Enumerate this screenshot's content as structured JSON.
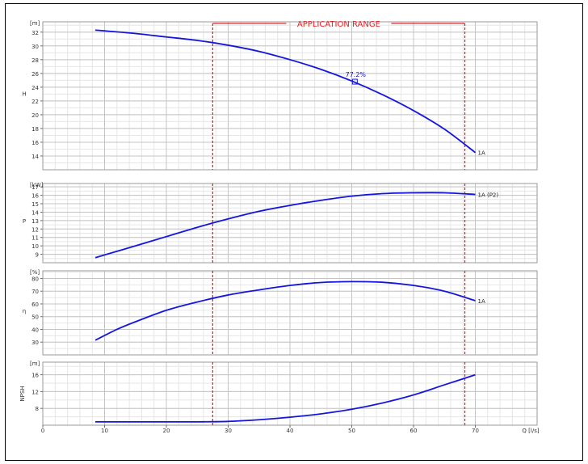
{
  "chart_data": {
    "type": "line",
    "shared_x": {
      "label": "Q [l/s]",
      "range": [
        0,
        80
      ],
      "ticks": [
        0,
        10,
        20,
        30,
        40,
        50,
        60,
        70
      ]
    },
    "application_range": {
      "label": "APPLICATION RANGE",
      "q_min": 27.5,
      "q_max": 68.3,
      "color": "#e3262a"
    },
    "curve_color": "#1515e0",
    "panels": [
      {
        "id": "head",
        "ylabel": "H",
        "unit": "[m]",
        "ylim": [
          12,
          33.5
        ],
        "ticks": [
          14,
          16,
          18,
          20,
          22,
          24,
          26,
          28,
          30,
          32
        ],
        "series": [
          {
            "name": "1A",
            "x": [
              8.5,
              15,
              20,
              25,
              30,
              35,
              40,
              45,
              50,
              55,
              60,
              65,
              70
            ],
            "y": [
              32.3,
              31.8,
              31.3,
              30.8,
              30.1,
              29.2,
              28.0,
              26.6,
              24.9,
              22.9,
              20.6,
              17.9,
              14.5
            ]
          }
        ],
        "marker": {
          "q": 50.5,
          "h": 24.8,
          "label": "77.2%"
        }
      },
      {
        "id": "power",
        "ylabel": "P",
        "unit": "[kW]",
        "ylim": [
          8,
          17.4
        ],
        "ticks": [
          9,
          10,
          11,
          12,
          13,
          14,
          15,
          16,
          17
        ],
        "series": [
          {
            "name": "1A (P2)",
            "x": [
              8.5,
              15,
              20,
              25,
              30,
              35,
              40,
              45,
              50,
              55,
              60,
              65,
              70
            ],
            "y": [
              8.6,
              10.0,
              11.1,
              12.2,
              13.2,
              14.1,
              14.8,
              15.4,
              15.9,
              16.2,
              16.3,
              16.3,
              16.1
            ]
          }
        ]
      },
      {
        "id": "efficiency",
        "ylabel": "η",
        "unit": "[%]",
        "ylim": [
          20,
          86
        ],
        "ticks": [
          30,
          40,
          50,
          60,
          70,
          80
        ],
        "series": [
          {
            "name": "1A",
            "x": [
              8.5,
              12,
              15,
              20,
              25,
              30,
              35,
              40,
              45,
              50,
              55,
              60,
              65,
              70
            ],
            "y": [
              31.5,
              40.0,
              46.0,
              55.0,
              61.5,
              67.0,
              71.0,
              74.5,
              76.8,
              77.5,
              77.0,
              74.5,
              70.0,
              62.5
            ]
          }
        ]
      },
      {
        "id": "npsh",
        "ylabel": "NPSH",
        "unit": "[m]",
        "ylim": [
          4,
          19
        ],
        "ticks": [
          8,
          12,
          16
        ],
        "series": [
          {
            "name": "",
            "x": [
              8.5,
              15,
              20,
              25,
              30,
              35,
              40,
              45,
              50,
              55,
              60,
              65,
              70
            ],
            "y": [
              4.8,
              4.8,
              4.8,
              4.8,
              4.9,
              5.3,
              5.9,
              6.7,
              7.8,
              9.3,
              11.2,
              13.6,
              16.0
            ]
          }
        ]
      }
    ]
  }
}
